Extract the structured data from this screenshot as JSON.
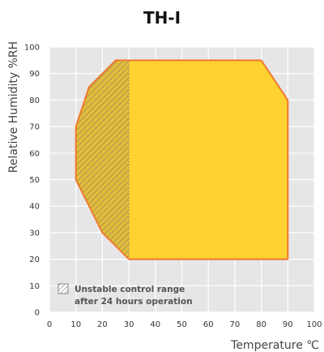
{
  "chart_data": {
    "type": "area",
    "title": "TH-I",
    "xlabel": "Temperature ℃",
    "ylabel": "Relative Humidity %RH",
    "xlim": [
      0,
      100
    ],
    "ylim": [
      0,
      100
    ],
    "x_ticks": [
      "0",
      "10",
      "20",
      "30",
      "40",
      "50",
      "60",
      "70",
      "80",
      "90",
      "100"
    ],
    "y_ticks": [
      "0",
      "10",
      "20",
      "30",
      "40",
      "50",
      "60",
      "70",
      "80",
      "90",
      "100"
    ],
    "grid": true,
    "series": [
      {
        "points": [
          [
            25,
            95
          ],
          [
            80,
            95
          ],
          [
            90,
            80
          ],
          [
            90,
            20
          ],
          [
            30,
            20
          ],
          [
            20,
            30
          ],
          [
            10,
            50
          ],
          [
            10,
            70
          ],
          [
            15,
            85
          ],
          [
            25,
            95
          ]
        ],
        "fill": "#ffd231",
        "stroke": "#f07830"
      },
      {
        "name": "Unstable control range after 24 hours operation",
        "points": [
          [
            30,
            20
          ],
          [
            20,
            30
          ],
          [
            10,
            50
          ],
          [
            10,
            70
          ],
          [
            15,
            85
          ],
          [
            25,
            95
          ],
          [
            30,
            95
          ],
          [
            30,
            20
          ]
        ],
        "pattern": "hatched"
      }
    ],
    "legend": {
      "position": "bottom-left",
      "lines": [
        "Unstable control range",
        "after 24 hours operation"
      ]
    }
  },
  "colors": {
    "plot_background": "#e6e6e6",
    "grid": "#ffffff",
    "area_fill": "#ffd231",
    "area_stroke": "#f07830",
    "hatch_background": "#e2bd3a",
    "hatch_line": "#9a8a5a"
  }
}
